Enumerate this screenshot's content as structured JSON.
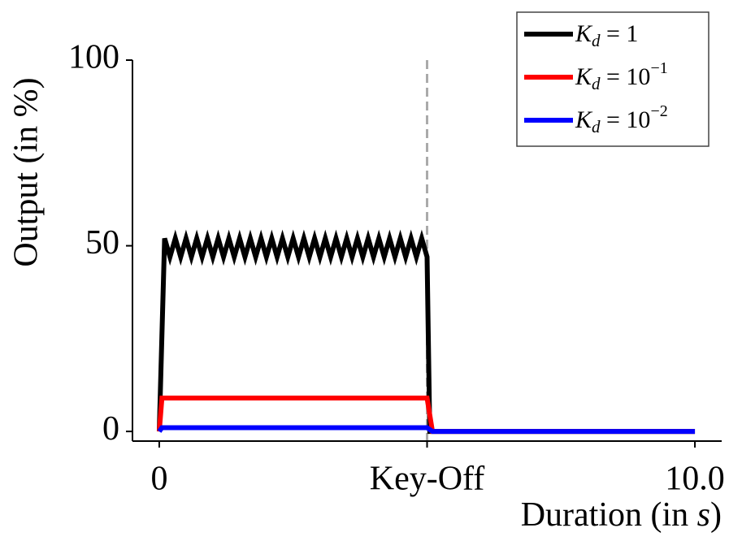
{
  "chart_data": {
    "type": "line",
    "ylabel": "Output (in %)",
    "xlabel": [
      "Duration (in ",
      "s",
      ")"
    ],
    "xlim": [
      -0.5,
      10.5
    ],
    "ylim": [
      -2.6,
      100
    ],
    "xticks": [
      0,
      {
        "value": 5,
        "label": "Key-Off"
      },
      {
        "value": 10,
        "label": "10.0"
      }
    ],
    "yticks": [
      0,
      50,
      100
    ],
    "vline": {
      "x": 5,
      "color": "#aaaaaa"
    },
    "legend": "upper right",
    "series": [
      {
        "name": [
          "K",
          "d",
          " = 1",
          ""
        ],
        "color": "#000000",
        "x": [
          0,
          0.1,
          0.2,
          0.3,
          0.4,
          0.5,
          0.6,
          0.7,
          0.8,
          0.9,
          1.0,
          1.1,
          1.2,
          1.3,
          1.4,
          1.5,
          1.6,
          1.7,
          1.8,
          1.9,
          2.0,
          2.1,
          2.2,
          2.3,
          2.4,
          2.5,
          2.6,
          2.7,
          2.8,
          2.9,
          3.0,
          3.1,
          3.2,
          3.3,
          3.4,
          3.5,
          3.6,
          3.7,
          3.8,
          3.9,
          4.0,
          4.1,
          4.2,
          4.3,
          4.4,
          4.5,
          4.6,
          4.7,
          4.8,
          4.9,
          5.0,
          5.05,
          10
        ],
        "values": [
          0,
          52,
          47,
          52,
          47,
          52,
          47,
          52,
          47,
          52,
          47,
          52,
          47,
          52,
          47,
          52,
          47,
          52,
          47,
          52,
          47,
          52,
          47,
          52,
          47,
          52,
          47,
          52,
          47,
          52,
          47,
          52,
          47,
          52,
          47,
          52,
          47,
          52,
          47,
          52,
          47,
          52,
          47,
          52,
          47,
          52,
          47,
          52,
          47,
          52,
          47,
          0,
          0
        ]
      },
      {
        "name": [
          "K",
          "d",
          " = 10",
          "−1"
        ],
        "color": "#ff0000",
        "x": [
          0,
          0.05,
          5.0,
          5.1,
          10
        ],
        "values": [
          0,
          9,
          9,
          0,
          0
        ]
      },
      {
        "name": [
          "K",
          "d",
          " = 10",
          "−2"
        ],
        "color": "#0000ff",
        "x": [
          0,
          0.05,
          5.0,
          5.1,
          10
        ],
        "values": [
          0,
          1,
          1,
          0,
          0
        ]
      }
    ]
  }
}
